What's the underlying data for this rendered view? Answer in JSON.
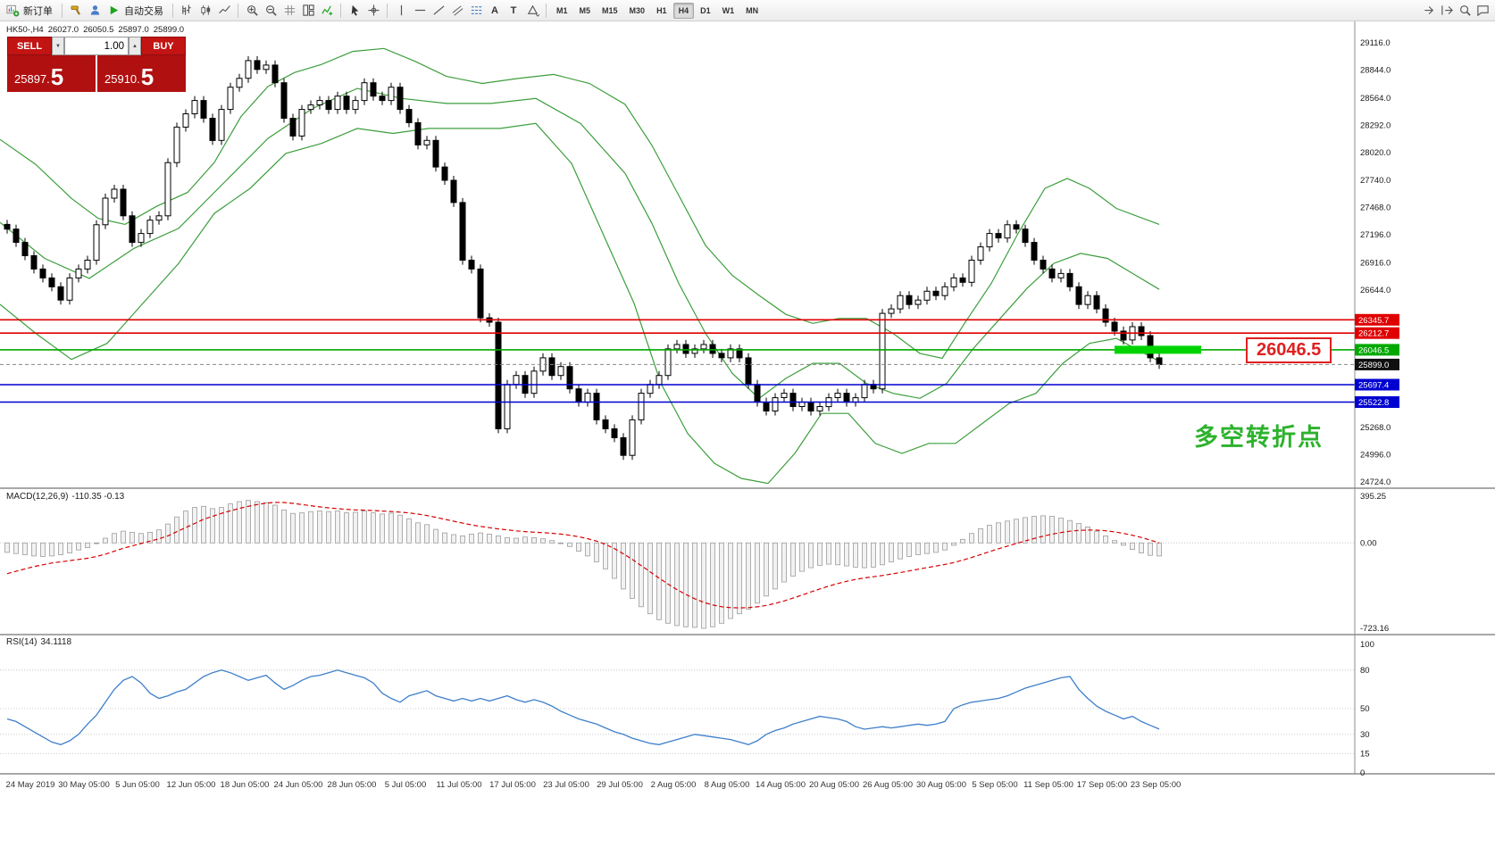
{
  "toolbar": {
    "groups": [
      {
        "items": [
          {
            "icon": "new-order",
            "label": "新订单"
          }
        ]
      },
      {
        "items": [
          {
            "icon": "hammer"
          },
          {
            "icon": "accounts"
          },
          {
            "icon": "autotrade-play",
            "label": "自动交易"
          }
        ]
      },
      {
        "items": [
          {
            "icon": "bar-chart"
          },
          {
            "icon": "candle-chart"
          },
          {
            "icon": "line-chart"
          }
        ]
      },
      {
        "items": [
          {
            "icon": "zoom-in"
          },
          {
            "icon": "zoom-out"
          },
          {
            "icon": "grid"
          },
          {
            "icon": "tile-windows"
          },
          {
            "icon": "indicators"
          }
        ]
      },
      {
        "items": [
          {
            "icon": "cursor"
          },
          {
            "icon": "crosshair"
          }
        ]
      },
      {
        "items": [
          {
            "icon": "vertical-line"
          },
          {
            "icon": "horizontal-line"
          },
          {
            "icon": "trendline"
          },
          {
            "icon": "channel"
          },
          {
            "icon": "fibonacci"
          },
          {
            "icon": "text",
            "label": "A"
          },
          {
            "icon": "label",
            "label": "T"
          },
          {
            "icon": "shapes"
          }
        ]
      }
    ],
    "timeframes": [
      "M1",
      "M5",
      "M15",
      "M30",
      "H1",
      "H4",
      "D1",
      "W1",
      "MN"
    ],
    "active_timeframe": "H4",
    "right_icons": [
      "auto-scroll",
      "chart-shift",
      "search",
      "chat"
    ]
  },
  "icons": {
    "up_arrow": "▲",
    "down_arrow": "▼"
  },
  "trade_panel": {
    "sell_label": "SELL",
    "buy_label": "BUY",
    "volume": "1.00",
    "sell_price_main": "25897.",
    "sell_price_big": "5",
    "buy_price_main": "25910.",
    "buy_price_big": "5"
  },
  "chart_header": {
    "symbol_period": "HK50-,H4",
    "open": "26027.0",
    "high": "26050.5",
    "low": "25897.0",
    "close": "25899.0"
  },
  "indicators": {
    "macd_label": "MACD(12,26,9)",
    "macd_values": "-110.35 -0.13",
    "rsi_label": "RSI(14)",
    "rsi_value": "34.1118"
  },
  "annotations": {
    "turning_point_text": "多空转折点",
    "level_label": "26046.5",
    "colors": {
      "annotation_green": "#2db22d",
      "label_red": "#e02020",
      "highlight_green": "#00d400",
      "trade_red": "#c31414",
      "trade_dark_red": "#b01010"
    }
  },
  "chart_data": {
    "type": "candlestick",
    "symbol": "HK50-",
    "timeframe": "H4",
    "price_axis": {
      "max": 29116.0,
      "min": 24724.0,
      "ticks": [
        29116.0,
        28844.0,
        28564.0,
        28292.0,
        28020.0,
        27740.0,
        27468.0,
        27196.0,
        26916.0,
        26644.0,
        25268.0,
        24996.0,
        24724.0
      ]
    },
    "hlines": [
      {
        "price": 26345.7,
        "badge": "26345.7",
        "color": "#e00000"
      },
      {
        "price": 26212.7,
        "badge": "26212.7",
        "color": "#e00000"
      },
      {
        "price": 26046.5,
        "badge": "26046.5",
        "color": "#00a800",
        "thick_segment": true
      },
      {
        "price": 25899.0,
        "badge": "25899.0",
        "color": "#888888",
        "style": "dashed",
        "badge_color": "#101010"
      },
      {
        "price": 25697.4,
        "badge": "25697.4",
        "color": "#0000d0"
      },
      {
        "price": 25522.8,
        "badge": "25522.8",
        "color": "#0000d0"
      }
    ],
    "dates": [
      "24 May 2019",
      "30 May 05:00",
      "5 Jun 05:00",
      "12 Jun 05:00",
      "18 Jun 05:00",
      "24 Jun 05:00",
      "28 Jun 05:00",
      "5 Jul 05:00",
      "11 Jul 05:00",
      "17 Jul 05:00",
      "23 Jul 05:00",
      "29 Jul 05:00",
      "2 Aug 05:00",
      "8 Aug 05:00",
      "14 Aug 05:00",
      "20 Aug 05:00",
      "26 Aug 05:00",
      "30 Aug 05:00",
      "5 Sep 05:00",
      "11 Sep 05:00",
      "17 Sep 05:00",
      "23 Sep 05:00"
    ],
    "candles": {
      "first_open": 27300,
      "wick": 45,
      "closes": [
        27253,
        27120,
        26987,
        26854,
        26765,
        26676,
        26543,
        26765,
        26854,
        26942,
        27297,
        27563,
        27652,
        27386,
        27120,
        27209,
        27342,
        27386,
        27918,
        28273,
        28406,
        28539,
        28362,
        28140,
        28450,
        28672,
        28761,
        28938,
        28850,
        28894,
        28717,
        28362,
        28184,
        28450,
        28495,
        28539,
        28450,
        28583,
        28450,
        28539,
        28717,
        28583,
        28539,
        28672,
        28450,
        28317,
        28095,
        28140,
        27874,
        27741,
        27519,
        26942,
        26854,
        26366,
        26322,
        25256,
        25700,
        25789,
        25611,
        25833,
        25966,
        25789,
        25878,
        25655,
        25522,
        25611,
        25345,
        25256,
        25167,
        24990,
        25345,
        25611,
        25700,
        25789,
        26055,
        26099,
        26010,
        26055,
        26099,
        26010,
        25966,
        26055,
        25966,
        25700,
        25522,
        25434,
        25567,
        25611,
        25478,
        25522,
        25434,
        25478,
        25567,
        25611,
        25522,
        25567,
        25700,
        25655,
        26410,
        26455,
        26588,
        26499,
        26543,
        26632,
        26588,
        26676,
        26765,
        26721,
        26942,
        27075,
        27209,
        27164,
        27297,
        27253,
        27120,
        26942,
        26854,
        26765,
        26809,
        26676,
        26499,
        26588,
        26455,
        26322,
        26233,
        26144,
        26277,
        26188,
        25966,
        25899
      ]
    },
    "bollinger": {
      "color": "#3c9e3c",
      "upper": [
        [
          0,
          28150
        ],
        [
          40,
          27900
        ],
        [
          80,
          27560
        ],
        [
          110,
          27360
        ],
        [
          140,
          27300
        ],
        [
          175,
          27480
        ],
        [
          210,
          27620
        ],
        [
          240,
          27920
        ],
        [
          270,
          28380
        ],
        [
          300,
          28680
        ],
        [
          330,
          28820
        ],
        [
          360,
          28900
        ],
        [
          395,
          29030
        ],
        [
          430,
          29060
        ],
        [
          465,
          28930
        ],
        [
          500,
          28780
        ],
        [
          540,
          28710
        ],
        [
          580,
          28760
        ],
        [
          620,
          28800
        ],
        [
          660,
          28710
        ],
        [
          700,
          28500
        ],
        [
          730,
          28090
        ],
        [
          760,
          27590
        ],
        [
          790,
          27090
        ],
        [
          820,
          26790
        ],
        [
          850,
          26590
        ],
        [
          880,
          26400
        ],
        [
          910,
          26310
        ],
        [
          940,
          26360
        ],
        [
          970,
          26360
        ],
        [
          1000,
          26210
        ],
        [
          1030,
          26010
        ],
        [
          1055,
          25960
        ],
        [
          1080,
          26310
        ],
        [
          1110,
          26710
        ],
        [
          1140,
          27210
        ],
        [
          1170,
          27660
        ],
        [
          1195,
          27760
        ],
        [
          1220,
          27660
        ],
        [
          1250,
          27460
        ],
        [
          1298,
          27300
        ]
      ],
      "middle": [
        [
          0,
          27320
        ],
        [
          50,
          26960
        ],
        [
          100,
          26760
        ],
        [
          150,
          27060
        ],
        [
          200,
          27260
        ],
        [
          250,
          27710
        ],
        [
          300,
          28160
        ],
        [
          350,
          28460
        ],
        [
          400,
          28660
        ],
        [
          450,
          28560
        ],
        [
          500,
          28510
        ],
        [
          550,
          28510
        ],
        [
          600,
          28560
        ],
        [
          650,
          28310
        ],
        [
          700,
          27810
        ],
        [
          730,
          27310
        ],
        [
          760,
          26710
        ],
        [
          790,
          26210
        ],
        [
          820,
          25810
        ],
        [
          850,
          25560
        ],
        [
          880,
          25760
        ],
        [
          910,
          25910
        ],
        [
          940,
          25910
        ],
        [
          970,
          25710
        ],
        [
          1000,
          25610
        ],
        [
          1030,
          25560
        ],
        [
          1060,
          25710
        ],
        [
          1090,
          26060
        ],
        [
          1120,
          26360
        ],
        [
          1150,
          26660
        ],
        [
          1180,
          26910
        ],
        [
          1210,
          27010
        ],
        [
          1240,
          26960
        ],
        [
          1298,
          26650
        ]
      ],
      "lower": [
        [
          0,
          26500
        ],
        [
          40,
          26210
        ],
        [
          80,
          25950
        ],
        [
          120,
          26110
        ],
        [
          160,
          26510
        ],
        [
          200,
          26910
        ],
        [
          240,
          27410
        ],
        [
          280,
          27660
        ],
        [
          320,
          28010
        ],
        [
          360,
          28110
        ],
        [
          400,
          28260
        ],
        [
          440,
          28210
        ],
        [
          480,
          28260
        ],
        [
          520,
          28260
        ],
        [
          560,
          28260
        ],
        [
          600,
          28310
        ],
        [
          640,
          27910
        ],
        [
          680,
          27110
        ],
        [
          710,
          26510
        ],
        [
          740,
          25710
        ],
        [
          770,
          25210
        ],
        [
          800,
          24910
        ],
        [
          830,
          24760
        ],
        [
          860,
          24710
        ],
        [
          890,
          25010
        ],
        [
          920,
          25410
        ],
        [
          950,
          25410
        ],
        [
          980,
          25110
        ],
        [
          1010,
          25010
        ],
        [
          1040,
          25110
        ],
        [
          1070,
          25110
        ],
        [
          1100,
          25310
        ],
        [
          1130,
          25510
        ],
        [
          1160,
          25610
        ],
        [
          1190,
          25910
        ],
        [
          1220,
          26110
        ],
        [
          1250,
          26160
        ],
        [
          1298,
          25930
        ]
      ]
    },
    "macd": {
      "label": "MACD(12,26,9)",
      "current": "-110.35 -0.13",
      "max": 395.25,
      "min": -723.16,
      "axis_ticks": [
        395.25,
        0.0,
        -723.16
      ],
      "hist": [
        -80,
        -90,
        -100,
        -110,
        -115,
        -110,
        -100,
        -85,
        -60,
        -40,
        0,
        40,
        80,
        100,
        90,
        80,
        90,
        110,
        160,
        220,
        270,
        300,
        310,
        290,
        300,
        330,
        350,
        360,
        350,
        340,
        320,
        280,
        250,
        255,
        265,
        270,
        265,
        270,
        255,
        260,
        272,
        255,
        245,
        252,
        235,
        205,
        170,
        155,
        115,
        85,
        70,
        60,
        75,
        85,
        75,
        60,
        45,
        40,
        50,
        45,
        35,
        20,
        0,
        -30,
        -70,
        -110,
        -160,
        -220,
        -300,
        -390,
        -470,
        -540,
        -600,
        -650,
        -680,
        -700,
        -710,
        -715,
        -723,
        -710,
        -680,
        -640,
        -600,
        -560,
        -510,
        -450,
        -390,
        -330,
        -280,
        -240,
        -210,
        -190,
        -180,
        -185,
        -195,
        -205,
        -210,
        -205,
        -185,
        -160,
        -135,
        -115,
        -100,
        -90,
        -80,
        -60,
        -20,
        30,
        80,
        120,
        150,
        170,
        185,
        200,
        215,
        225,
        230,
        225,
        210,
        190,
        165,
        135,
        100,
        60,
        20,
        -20,
        -55,
        -85,
        -105,
        -110
      ],
      "signal": [
        -260,
        -240,
        -220,
        -200,
        -185,
        -170,
        -160,
        -150,
        -140,
        -130,
        -115,
        -95,
        -70,
        -45,
        -25,
        -5,
        15,
        35,
        60,
        95,
        130,
        165,
        200,
        225,
        250,
        272,
        292,
        310,
        325,
        337,
        343,
        342,
        335,
        325,
        315,
        305,
        297,
        290,
        284,
        280,
        277,
        274,
        270,
        266,
        261,
        254,
        244,
        232,
        217,
        200,
        184,
        168,
        153,
        140,
        129,
        119,
        110,
        102,
        96,
        91,
        87,
        82,
        75,
        65,
        52,
        36,
        15,
        -12,
        -48,
        -92,
        -140,
        -192,
        -245,
        -298,
        -348,
        -395,
        -437,
        -473,
        -503,
        -525,
        -540,
        -548,
        -550,
        -548,
        -541,
        -529,
        -512,
        -491,
        -467,
        -441,
        -415,
        -390,
        -366,
        -344,
        -325,
        -309,
        -296,
        -286,
        -276,
        -264,
        -251,
        -237,
        -223,
        -209,
        -196,
        -182,
        -166,
        -146,
        -123,
        -99,
        -74,
        -50,
        -27,
        -5,
        17,
        38,
        57,
        74,
        88,
        99,
        106,
        109,
        108,
        103,
        94,
        81,
        65,
        46,
        24,
        -0.13
      ]
    },
    "rsi": {
      "label": "RSI(14)",
      "current": 34.1118,
      "levels": [
        80,
        50,
        30,
        15
      ],
      "axis_ticks": [
        100,
        80,
        50,
        30,
        15,
        0
      ],
      "color": "#3f7fca",
      "values": [
        42,
        40,
        36,
        32,
        28,
        24,
        22,
        25,
        30,
        38,
        45,
        55,
        65,
        72,
        75,
        70,
        62,
        58,
        60,
        63,
        65,
        70,
        75,
        78,
        80,
        78,
        75,
        72,
        74,
        76,
        70,
        65,
        68,
        72,
        75,
        76,
        78,
        80,
        78,
        76,
        74,
        70,
        62,
        58,
        55,
        60,
        62,
        64,
        60,
        58,
        56,
        58,
        56,
        58,
        56,
        58,
        60,
        57,
        55,
        57,
        55,
        52,
        48,
        45,
        42,
        40,
        38,
        35,
        32,
        30,
        27,
        25,
        23,
        22,
        24,
        26,
        28,
        30,
        29,
        28,
        27,
        26,
        24,
        22,
        25,
        30,
        33,
        35,
        38,
        40,
        42,
        44,
        43,
        42,
        40,
        36,
        34,
        35,
        36,
        35,
        36,
        37,
        38,
        37,
        38,
        40,
        50,
        53,
        55,
        56,
        57,
        58,
        60,
        63,
        66,
        68,
        70,
        72,
        74,
        75,
        65,
        58,
        52,
        48,
        45,
        42,
        44,
        40,
        37,
        34.11
      ]
    }
  }
}
